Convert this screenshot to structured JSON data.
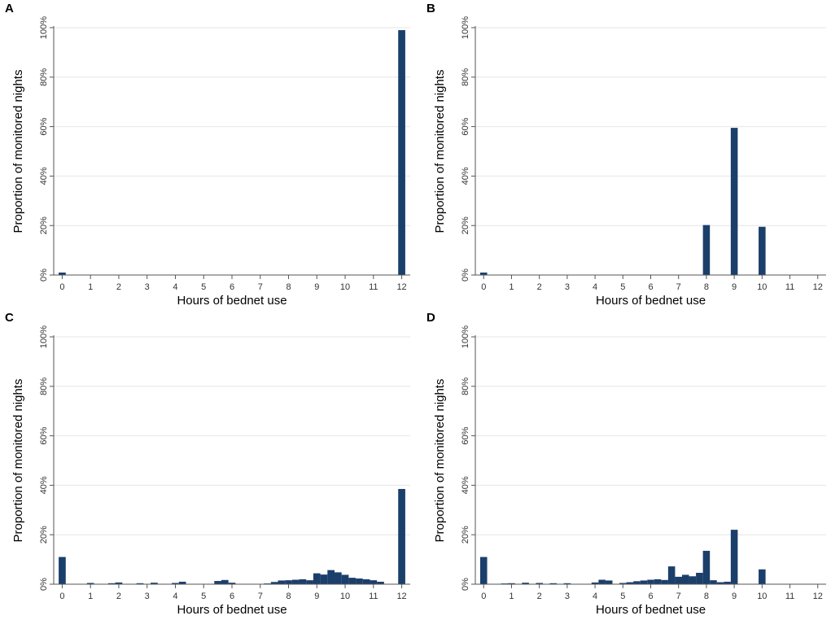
{
  "chart_data": [
    {
      "panel": "A",
      "type": "bar",
      "xlabel": "Hours of bednet use",
      "ylabel": "Proportion of monitored nights",
      "xlim": [
        -0.3,
        12.3
      ],
      "ylim": [
        0,
        100
      ],
      "xticks": [
        0,
        1,
        2,
        3,
        4,
        5,
        6,
        7,
        8,
        9,
        10,
        11,
        12
      ],
      "yticks": [
        0,
        20,
        40,
        60,
        80,
        100
      ],
      "ytick_labels": [
        "0%",
        "20%",
        "40%",
        "60%",
        "80%",
        "100%"
      ],
      "bar_width": 0.25,
      "color": "#1b3f6b",
      "x": [
        0,
        12
      ],
      "values": [
        1,
        99
      ]
    },
    {
      "panel": "B",
      "type": "bar",
      "xlabel": "Hours of bednet use",
      "ylabel": "Proportion of monitored nights",
      "xlim": [
        -0.3,
        12.3
      ],
      "ylim": [
        0,
        100
      ],
      "xticks": [
        0,
        1,
        2,
        3,
        4,
        5,
        6,
        7,
        8,
        9,
        10,
        11,
        12
      ],
      "yticks": [
        0,
        20,
        40,
        60,
        80,
        100
      ],
      "ytick_labels": [
        "0%",
        "20%",
        "40%",
        "60%",
        "80%",
        "100%"
      ],
      "bar_width": 0.25,
      "color": "#1b3f6b",
      "x": [
        0,
        8,
        9,
        10
      ],
      "values": [
        1,
        20.2,
        59.5,
        19.5
      ]
    },
    {
      "panel": "C",
      "type": "bar",
      "xlabel": "Hours of bednet use",
      "ylabel": "Proportion of monitored nights",
      "xlim": [
        -0.3,
        12.3
      ],
      "ylim": [
        0,
        100
      ],
      "xticks": [
        0,
        1,
        2,
        3,
        4,
        5,
        6,
        7,
        8,
        9,
        10,
        11,
        12
      ],
      "yticks": [
        0,
        20,
        40,
        60,
        80,
        100
      ],
      "ytick_labels": [
        "0%",
        "20%",
        "40%",
        "60%",
        "80%",
        "100%"
      ],
      "bar_width": 0.25,
      "color": "#1b3f6b",
      "x": [
        0,
        1,
        1.75,
        2,
        2.75,
        3.25,
        4,
        4.25,
        5.5,
        5.75,
        6,
        7.25,
        7.5,
        7.75,
        8,
        8.25,
        8.5,
        8.75,
        9,
        9.25,
        9.5,
        9.75,
        10,
        10.25,
        10.5,
        10.75,
        11,
        11.25,
        12
      ],
      "values": [
        11,
        0.5,
        0.4,
        0.7,
        0.4,
        0.6,
        0.5,
        1.0,
        1.3,
        1.7,
        0.6,
        0.3,
        0.9,
        1.5,
        1.6,
        1.8,
        2.0,
        1.6,
        4.4,
        3.9,
        5.7,
        4.8,
        3.8,
        2.6,
        2.3,
        2.0,
        1.6,
        1.0,
        38.5
      ]
    },
    {
      "panel": "D",
      "type": "bar",
      "xlabel": "Hours of bednet use",
      "ylabel": "Proportion of monitored nights",
      "xlim": [
        -0.3,
        12.3
      ],
      "ylim": [
        0,
        100
      ],
      "xticks": [
        0,
        1,
        2,
        3,
        4,
        5,
        6,
        7,
        8,
        9,
        10,
        11,
        12
      ],
      "yticks": [
        0,
        20,
        40,
        60,
        80,
        100
      ],
      "ytick_labels": [
        "0%",
        "20%",
        "40%",
        "60%",
        "80%",
        "100%"
      ],
      "bar_width": 0.25,
      "color": "#1b3f6b",
      "x": [
        0,
        0.75,
        1,
        1.5,
        2,
        2.5,
        3,
        4,
        4.25,
        4.5,
        5,
        5.25,
        5.5,
        5.75,
        6,
        6.25,
        6.5,
        6.75,
        7,
        7.25,
        7.5,
        7.75,
        8,
        8.25,
        8.5,
        8.75,
        9,
        10
      ],
      "values": [
        11,
        0.3,
        0.4,
        0.6,
        0.5,
        0.4,
        0.4,
        0.7,
        1.8,
        1.5,
        0.5,
        0.8,
        1.2,
        1.5,
        1.8,
        2.0,
        1.7,
        7.2,
        3.0,
        3.8,
        3.2,
        4.6,
        13.5,
        1.6,
        0.8,
        1.0,
        22.0,
        6.0
      ]
    }
  ]
}
